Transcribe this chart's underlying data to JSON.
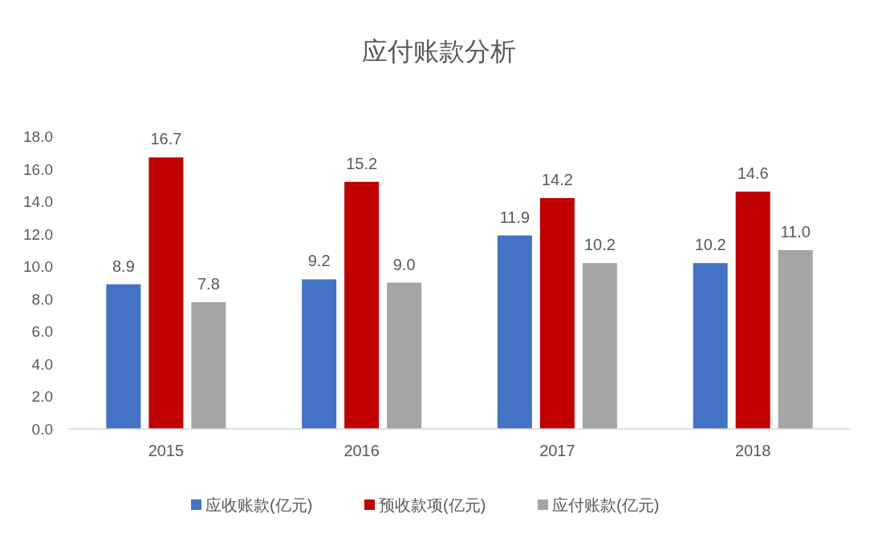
{
  "chart_data": {
    "type": "bar",
    "title": "应付账款分析",
    "categories": [
      "2015",
      "2016",
      "2017",
      "2018"
    ],
    "series": [
      {
        "name": "应收账款(亿元)",
        "color": "#4472c4",
        "values": [
          8.9,
          9.2,
          11.9,
          10.2
        ],
        "value_labels": [
          "8.9",
          "9.2",
          "11.9",
          "10.2"
        ]
      },
      {
        "name": "预收款项(亿元)",
        "color": "#c00000",
        "values": [
          16.7,
          15.2,
          14.2,
          14.6
        ],
        "value_labels": [
          "16.7",
          "15.2",
          "14.2",
          "14.6"
        ]
      },
      {
        "name": "应付账款(亿元)",
        "color": "#a5a5a5",
        "values": [
          7.8,
          9.0,
          10.2,
          11.0
        ],
        "value_labels": [
          "7.8",
          "9.0",
          "10.2",
          "11.0"
        ]
      }
    ],
    "ylim": [
      0,
      18
    ],
    "yticks": [
      {
        "value": 0,
        "label": "0.0"
      },
      {
        "value": 2,
        "label": "2.0"
      },
      {
        "value": 4,
        "label": "4.0"
      },
      {
        "value": 6,
        "label": "6.0"
      },
      {
        "value": 8,
        "label": "8.0"
      },
      {
        "value": 10,
        "label": "10.0"
      },
      {
        "value": 12,
        "label": "12.0"
      },
      {
        "value": 14,
        "label": "14.0"
      },
      {
        "value": 16,
        "label": "16.0"
      },
      {
        "value": 18,
        "label": "18.0"
      }
    ],
    "legend": "bottom"
  }
}
